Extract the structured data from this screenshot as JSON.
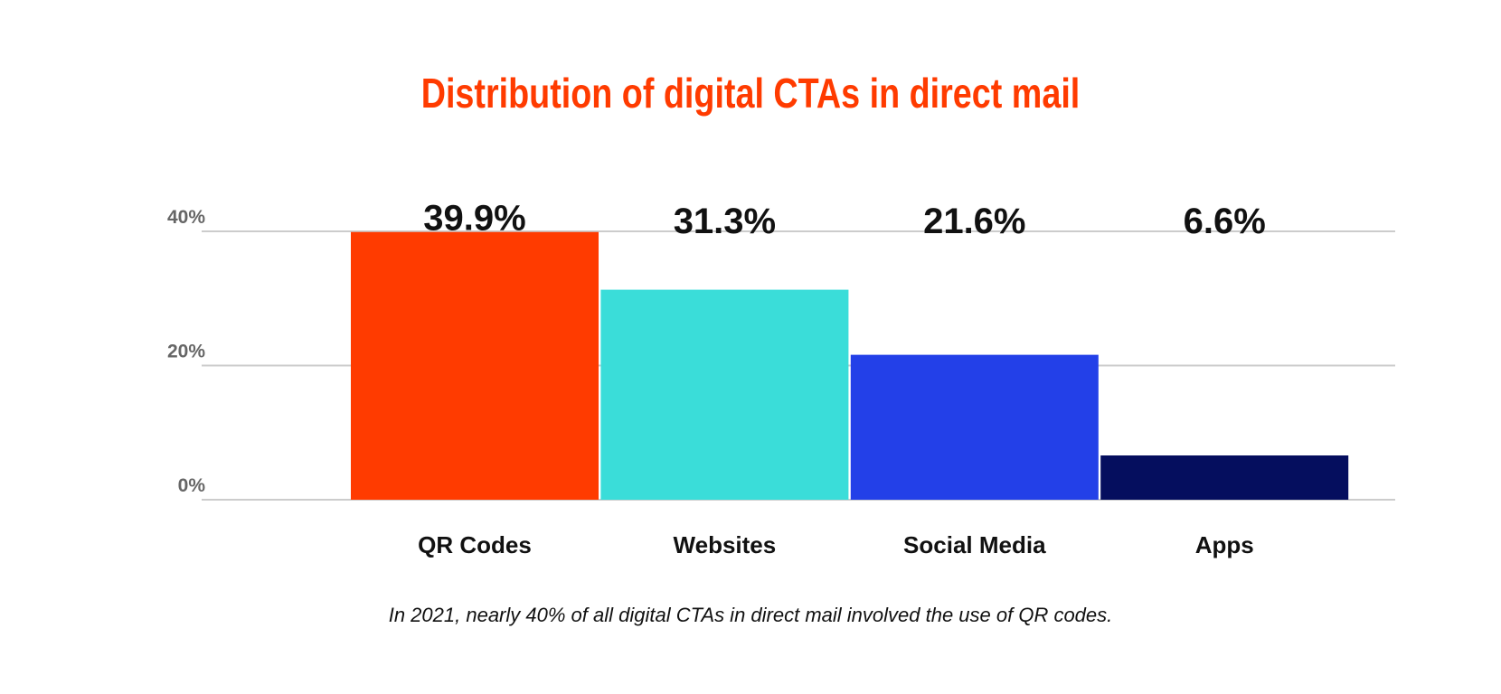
{
  "chart_data": {
    "type": "bar",
    "title": "Distribution of digital CTAs in direct mail",
    "categories": [
      "QR Codes",
      "Websites",
      "Social Media",
      "Apps"
    ],
    "values": [
      39.9,
      31.3,
      21.6,
      6.6
    ],
    "data_labels": [
      "39.9%",
      "31.3%",
      "21.6%",
      "6.6%"
    ],
    "colors": [
      "#FF3B00",
      "#3ADDD9",
      "#2340E8",
      "#050E5E"
    ],
    "xlabel": "",
    "ylabel": "",
    "ylim": [
      0,
      40
    ],
    "yticks": [
      "0%",
      "20%",
      "40%"
    ],
    "grid": true,
    "caption": "In 2021, nearly 40% of all digital CTAs in direct mail involved the use of QR codes."
  }
}
